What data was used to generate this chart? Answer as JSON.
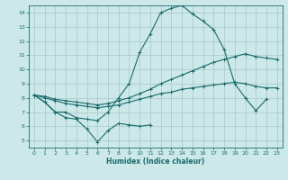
{
  "xlabel": "Humidex (Indice chaleur)",
  "bg_color": "#cce8e8",
  "grid_color": "#a8c8c8",
  "line_color": "#1a6b6b",
  "xlim": [
    -0.5,
    23.5
  ],
  "ylim": [
    4.5,
    14.5
  ],
  "xticks": [
    0,
    1,
    2,
    3,
    4,
    5,
    6,
    7,
    8,
    9,
    10,
    11,
    12,
    13,
    14,
    15,
    16,
    17,
    18,
    19,
    20,
    21,
    22,
    23
  ],
  "yticks": [
    5,
    6,
    7,
    8,
    9,
    10,
    11,
    12,
    13,
    14
  ],
  "series": {
    "line1_x": [
      0,
      1,
      2,
      3,
      4,
      5,
      6,
      7,
      8,
      9,
      10,
      11
    ],
    "line1_y": [
      8.2,
      7.7,
      7.0,
      6.6,
      6.5,
      5.8,
      4.9,
      5.7,
      6.2,
      6.1,
      6.0,
      6.1
    ],
    "line2_x": [
      0,
      1,
      2,
      3,
      4,
      5,
      6,
      7,
      8,
      9,
      10,
      11,
      12,
      13,
      14,
      15,
      16,
      17,
      18,
      19,
      20,
      21,
      22
    ],
    "line2_y": [
      8.2,
      7.7,
      7.0,
      7.0,
      6.6,
      6.5,
      6.4,
      7.0,
      8.0,
      9.0,
      11.2,
      12.5,
      14.0,
      14.3,
      14.5,
      13.9,
      13.4,
      12.8,
      11.4,
      9.0,
      8.0,
      7.1,
      7.9
    ],
    "line3_x": [
      0,
      1,
      2,
      3,
      4,
      5,
      6,
      7,
      8,
      9,
      10,
      11,
      12,
      13,
      14,
      15,
      16,
      17,
      18,
      19,
      20,
      21,
      22,
      23
    ],
    "line3_y": [
      8.2,
      8.1,
      7.9,
      7.8,
      7.7,
      7.6,
      7.5,
      7.6,
      7.8,
      8.0,
      8.3,
      8.6,
      9.0,
      9.3,
      9.6,
      9.9,
      10.2,
      10.5,
      10.7,
      10.9,
      11.1,
      10.9,
      10.8,
      10.7
    ],
    "line4_x": [
      0,
      1,
      2,
      3,
      4,
      5,
      6,
      7,
      8,
      9,
      10,
      11,
      12,
      13,
      14,
      15,
      16,
      17,
      18,
      19,
      20,
      21,
      22,
      23
    ],
    "line4_y": [
      8.2,
      8.0,
      7.8,
      7.6,
      7.5,
      7.4,
      7.3,
      7.4,
      7.5,
      7.7,
      7.9,
      8.1,
      8.3,
      8.4,
      8.6,
      8.7,
      8.8,
      8.9,
      9.0,
      9.1,
      9.0,
      8.8,
      8.7,
      8.7
    ]
  }
}
